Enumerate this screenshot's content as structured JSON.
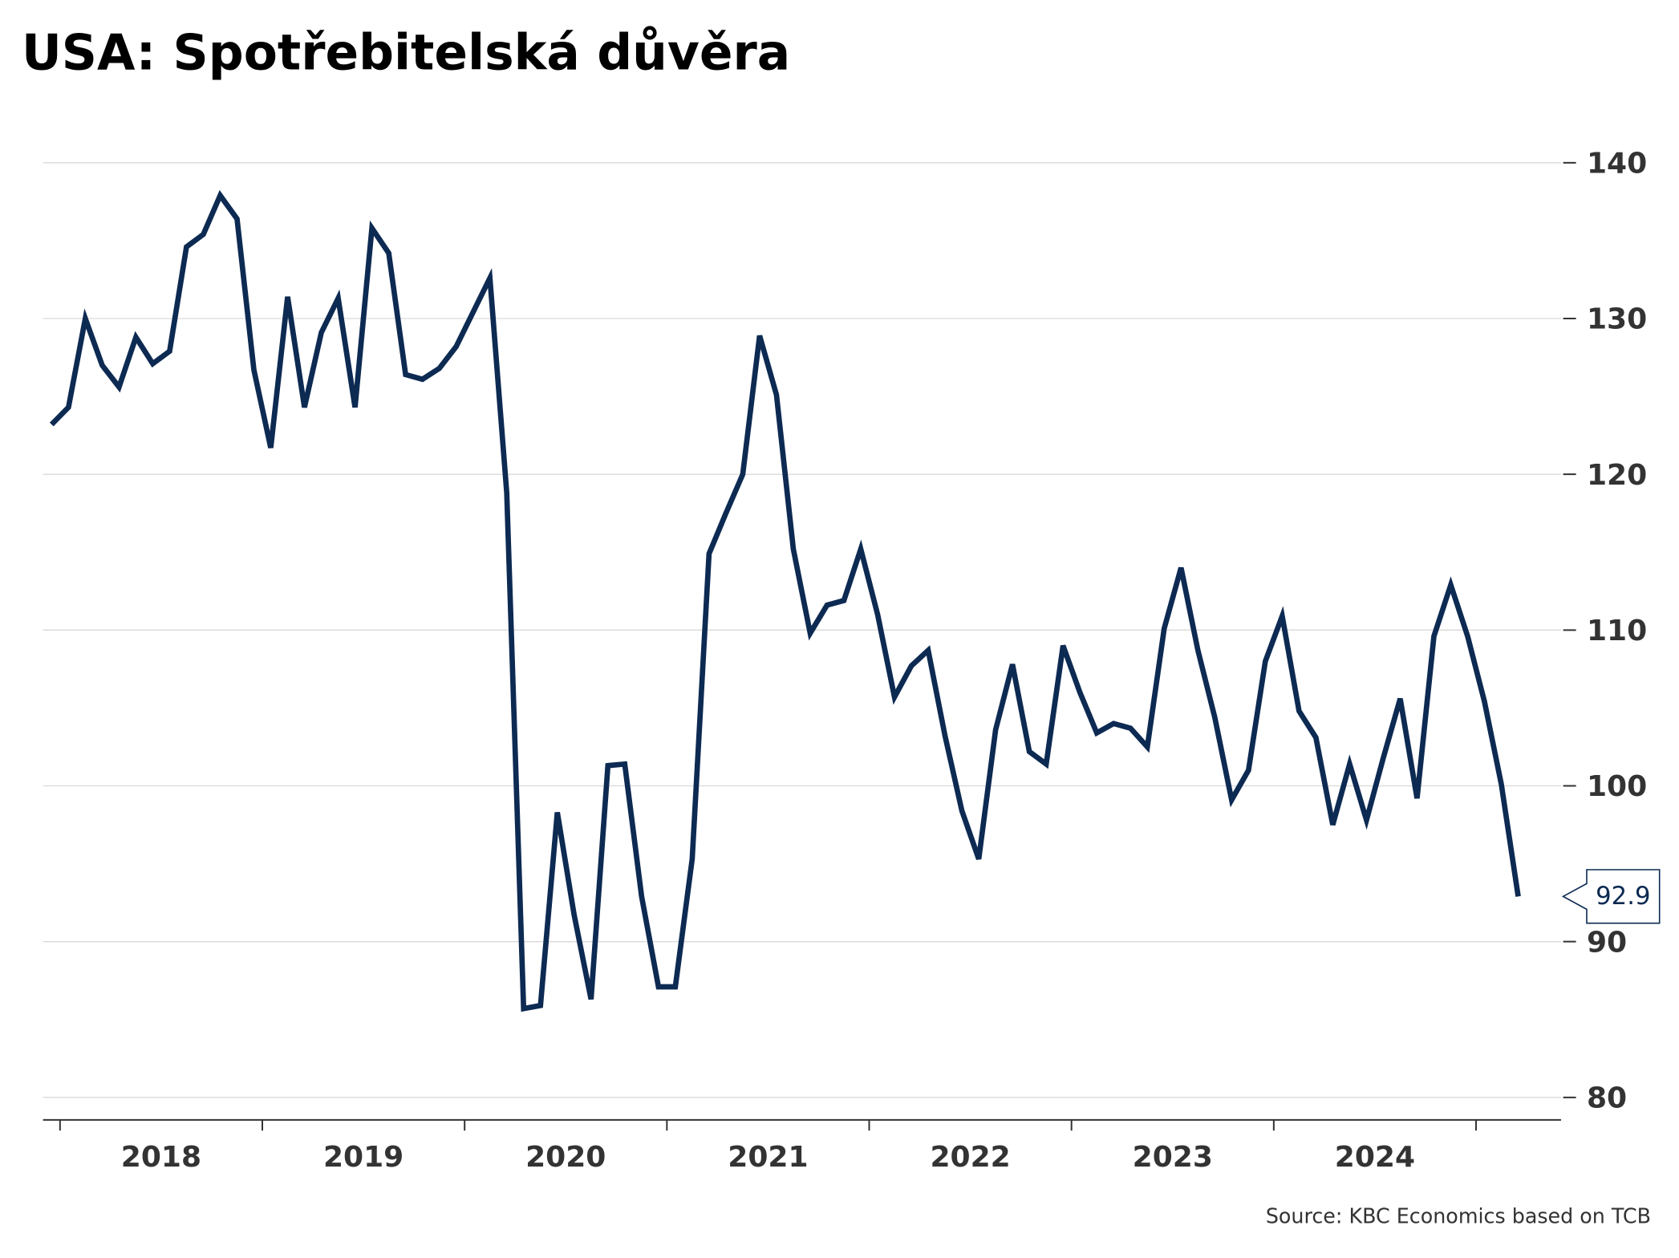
{
  "chart_data": {
    "type": "line",
    "title": "USA: Spotřebitelská důvěra",
    "source": "Source: KBC Economics based on TCB",
    "categories": [
      null,
      null,
      null,
      null,
      null,
      null,
      null,
      "2018",
      null,
      null,
      null,
      null,
      null,
      null,
      null,
      null,
      null,
      null,
      null,
      "2019",
      null,
      null,
      null,
      null,
      null,
      null,
      null,
      null,
      null,
      null,
      null,
      "2020",
      null,
      null,
      null,
      null,
      null,
      null,
      null,
      null,
      null,
      null,
      null,
      "2021",
      null,
      null,
      null,
      null,
      null,
      null,
      null,
      null,
      null,
      null,
      null,
      "2022",
      null,
      null,
      null,
      null,
      null,
      null,
      null,
      null,
      null,
      null,
      null,
      "2023",
      null,
      null,
      null,
      null,
      null,
      null,
      null,
      null,
      null,
      null,
      null,
      "2024",
      null,
      null,
      null,
      null,
      null,
      null,
      null,
      null
    ],
    "values": [
      123.2,
      124.3,
      130.0,
      127.0,
      125.6,
      128.8,
      127.1,
      127.9,
      134.6,
      135.4,
      137.9,
      136.4,
      126.7,
      121.7,
      131.4,
      124.3,
      129.1,
      131.3,
      124.3,
      135.8,
      134.2,
      126.4,
      126.1,
      126.8,
      128.2,
      130.4,
      132.6,
      118.8,
      85.7,
      85.9,
      98.3,
      91.7,
      86.3,
      101.3,
      101.4,
      92.9,
      87.1,
      87.1,
      95.3,
      114.9,
      117.5,
      120.0,
      128.9,
      125.1,
      115.2,
      109.8,
      111.6,
      111.9,
      115.2,
      111.0,
      105.7,
      107.7,
      108.7,
      103.2,
      98.4,
      95.3,
      103.6,
      107.8,
      102.2,
      101.4,
      109.0,
      106.0,
      103.4,
      104.0,
      103.7,
      102.5,
      110.1,
      114.0,
      108.7,
      104.4,
      99.1,
      101.0,
      108.0,
      110.9,
      104.8,
      103.1,
      97.5,
      101.4,
      97.8,
      101.8,
      105.6,
      99.2,
      109.6,
      112.9,
      109.6,
      105.4,
      100.1,
      92.9
    ],
    "color": "#0d2a52",
    "ylim": [
      78.5,
      145
    ],
    "yticks": [
      80,
      90,
      100,
      110,
      120,
      130,
      140
    ],
    "grid": true
  }
}
